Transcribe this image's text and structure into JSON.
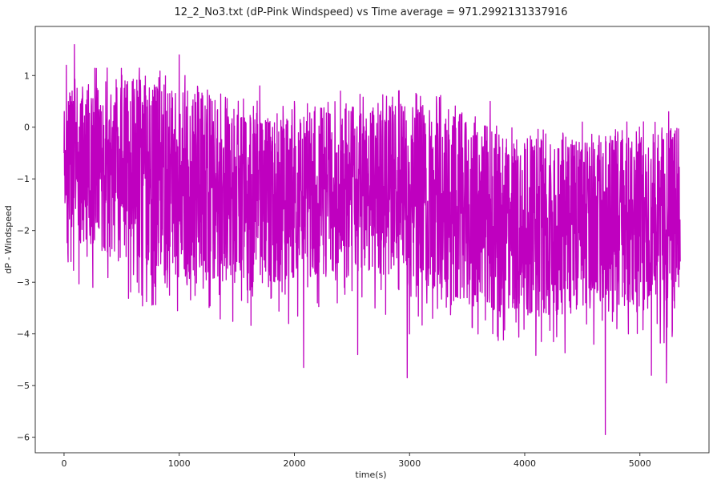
{
  "chart_data": {
    "type": "line",
    "title": "12_2_No3.txt  (dP-Pink Windspeed) vs Time  average = 971.2992131337916",
    "xlabel": "time(s)",
    "ylabel": "dP - Windspeed",
    "xlim": [
      -250,
      5600
    ],
    "ylim": [
      -6.3,
      1.95
    ],
    "x_ticks": [
      0,
      1000,
      2000,
      3000,
      4000,
      5000
    ],
    "y_ticks": [
      1,
      0,
      -1,
      -2,
      -3,
      -4,
      -5,
      -6
    ],
    "x_tick_labels": [
      "0",
      "1000",
      "2000",
      "3000",
      "4000",
      "5000"
    ],
    "y_tick_labels": [
      "1",
      "0",
      "−1",
      "−2",
      "−3",
      "−4",
      "−5",
      "−6"
    ],
    "grid": false,
    "legend": "none",
    "series": [
      {
        "color": "#bf00bf",
        "x_range": [
          0,
          5350
        ],
        "approx_points": [
          [
            0,
            -0.5
          ],
          [
            20,
            1.2
          ],
          [
            40,
            -1.2
          ],
          [
            60,
            -2.6
          ],
          [
            80,
            0.5
          ],
          [
            90,
            1.6
          ],
          [
            110,
            -1.0
          ],
          [
            200,
            -2.5
          ],
          [
            250,
            -3.1
          ],
          [
            300,
            0.3
          ],
          [
            400,
            -2.5
          ],
          [
            500,
            0.2
          ],
          [
            650,
            -3.2
          ],
          [
            800,
            0.5
          ],
          [
            900,
            -2.7
          ],
          [
            1000,
            1.4
          ],
          [
            1050,
            1.0
          ],
          [
            1100,
            -2.7
          ],
          [
            1200,
            -0.4
          ],
          [
            1500,
            -2.6
          ],
          [
            1700,
            0.8
          ],
          [
            1800,
            -3.3
          ],
          [
            1950,
            -3.8
          ],
          [
            2000,
            0.5
          ],
          [
            2080,
            -4.65
          ],
          [
            2200,
            -3.4
          ],
          [
            2400,
            0.7
          ],
          [
            2550,
            -4.4
          ],
          [
            2700,
            -3.5
          ],
          [
            2800,
            0.6
          ],
          [
            2980,
            -4.85
          ],
          [
            3000,
            -4.0
          ],
          [
            3200,
            -3.7
          ],
          [
            3300,
            -0.5
          ],
          [
            3500,
            -3.3
          ],
          [
            3700,
            0.5
          ],
          [
            3900,
            -3.4
          ],
          [
            4000,
            -0.4
          ],
          [
            4250,
            -4.15
          ],
          [
            4400,
            -3.6
          ],
          [
            4500,
            0.1
          ],
          [
            4600,
            -4.2
          ],
          [
            4700,
            -5.95
          ],
          [
            4800,
            -3.9
          ],
          [
            4900,
            -4.0
          ],
          [
            5000,
            -0.3
          ],
          [
            5100,
            -4.8
          ],
          [
            5150,
            -3.8
          ],
          [
            5230,
            -4.95
          ],
          [
            5250,
            0.3
          ],
          [
            5300,
            -3.5
          ],
          [
            5350,
            -2.6
          ]
        ]
      }
    ]
  }
}
